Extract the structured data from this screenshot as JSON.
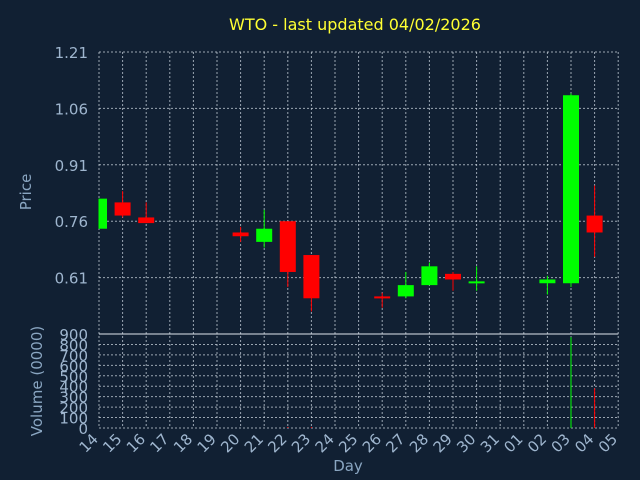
{
  "chart_data": {
    "type": "candlestick",
    "title": "WTO - last updated 04/02/2026",
    "price_axis": {
      "label": "Price",
      "ylim": [
        0.46,
        1.21
      ],
      "ticks": [
        "1.21",
        "1.06",
        "0.91",
        "0.76",
        "0.61"
      ]
    },
    "volume_axis": {
      "label": "Volume (0000)",
      "ylim": [
        0,
        900
      ],
      "ticks": [
        "900",
        "800",
        "700",
        "600",
        "500",
        "400",
        "300",
        "200",
        "100",
        "0"
      ]
    },
    "x_axis": {
      "label": "Day",
      "categories": [
        "14",
        "15",
        "16",
        "17",
        "18",
        "19",
        "20",
        "21",
        "22",
        "23",
        "24",
        "25",
        "26",
        "27",
        "28",
        "29",
        "30",
        "31",
        "01",
        "02",
        "03",
        "04",
        "05"
      ]
    },
    "series": [
      {
        "day": "14",
        "open": 0.74,
        "high": 0.82,
        "low": 0.74,
        "close": 0.82,
        "volume": 0
      },
      {
        "day": "15",
        "open": 0.81,
        "high": 0.84,
        "low": 0.77,
        "close": 0.775,
        "volume": 0
      },
      {
        "day": "16",
        "open": 0.77,
        "high": 0.81,
        "low": 0.755,
        "close": 0.755,
        "volume": 0
      },
      {
        "day": "20",
        "open": 0.73,
        "high": 0.745,
        "low": 0.705,
        "close": 0.72,
        "volume": 0
      },
      {
        "day": "21",
        "open": 0.705,
        "high": 0.79,
        "low": 0.69,
        "close": 0.74,
        "volume": 0
      },
      {
        "day": "22",
        "open": 0.76,
        "high": 0.76,
        "low": 0.585,
        "close": 0.625,
        "volume": 10
      },
      {
        "day": "23",
        "open": 0.67,
        "high": 0.67,
        "low": 0.52,
        "close": 0.555,
        "volume": 10
      },
      {
        "day": "26",
        "open": 0.56,
        "high": 0.57,
        "low": 0.53,
        "close": 0.555,
        "volume": 0
      },
      {
        "day": "27",
        "open": 0.56,
        "high": 0.625,
        "low": 0.555,
        "close": 0.59,
        "volume": 0
      },
      {
        "day": "28",
        "open": 0.59,
        "high": 0.65,
        "low": 0.59,
        "close": 0.64,
        "volume": 0
      },
      {
        "day": "29",
        "open": 0.62,
        "high": 0.625,
        "low": 0.575,
        "close": 0.605,
        "volume": 0
      },
      {
        "day": "30",
        "open": 0.6,
        "high": 0.64,
        "low": 0.575,
        "close": 0.6,
        "volume": 0
      },
      {
        "day": "02",
        "open": 0.595,
        "high": 0.615,
        "low": 0.565,
        "close": 0.605,
        "volume": 0
      },
      {
        "day": "03",
        "open": 0.595,
        "high": 1.1,
        "low": 0.585,
        "close": 1.095,
        "volume": 870
      },
      {
        "day": "04",
        "open": 0.775,
        "high": 0.855,
        "low": 0.665,
        "close": 0.73,
        "volume": 380
      }
    ],
    "colors": {
      "up": "#00ff00",
      "down": "#ff0000",
      "background": "#112033",
      "title": "#ffff33",
      "tick": "#9fb6cf",
      "grid": "#c9d3dd"
    }
  }
}
